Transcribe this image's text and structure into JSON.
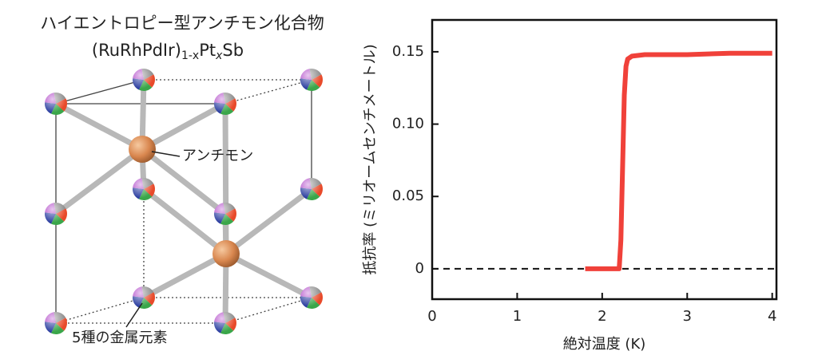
{
  "chart_data": {
    "type": "line",
    "x_label": "絶対温度 (K)",
    "y_label": "抵抗率 (ミリオームセンチメートル)",
    "xlim": [
      0,
      4.05
    ],
    "xticks": [
      0,
      1,
      2,
      3,
      4
    ],
    "ylim": [
      -0.021,
      0.172
    ],
    "yticks": [
      0,
      0.05,
      {
        "value": 0.1,
        "label": "0.10"
      },
      0.15
    ],
    "reference_line": 0,
    "series": [
      {
        "color": "#f0413a",
        "x": [
          1.8,
          2.0,
          2.2,
          2.22,
          2.24,
          2.26,
          2.28,
          2.3,
          2.35,
          2.5,
          3.0,
          3.5,
          4.0
        ],
        "values": [
          0,
          0,
          0,
          0.02,
          0.07,
          0.12,
          0.14,
          0.145,
          0.147,
          0.148,
          0.148,
          0.149,
          0.149
        ]
      }
    ]
  },
  "diagram": {
    "title": "ハイエントロピー型アンチモン化合物",
    "formula": [
      "(RuRhPdIr)",
      "1-x",
      "Pt",
      "x",
      "Sb"
    ],
    "labels": [
      "アンチモン",
      "5種の金属元素"
    ]
  }
}
